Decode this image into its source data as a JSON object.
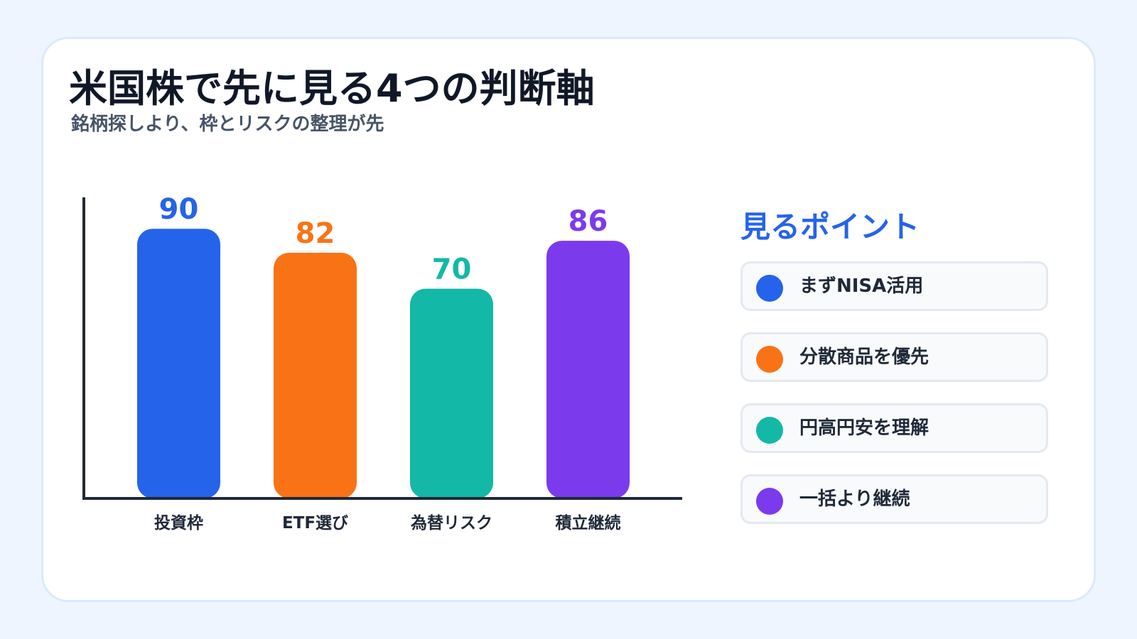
{
  "title": "米国株で先に見る4つの判断軸",
  "subtitle": "銘柄探しより、枠とリスクの整理が先",
  "chart_data": {
    "type": "bar",
    "categories": [
      "投資枠",
      "ETF選び",
      "為替リスク",
      "積立継続"
    ],
    "values": [
      90,
      82,
      70,
      86
    ],
    "colors": [
      "#2563eb",
      "#f97316",
      "#14b8a6",
      "#7c3aed"
    ],
    "ylim": [
      0,
      100
    ],
    "grid": false,
    "title": "",
    "xlabel": "",
    "ylabel": ""
  },
  "points": {
    "title": "見るポイント",
    "items": [
      {
        "label": "まずNISA活用",
        "color": "#2563eb"
      },
      {
        "label": "分散商品を優先",
        "color": "#f97316"
      },
      {
        "label": "円高円安を理解",
        "color": "#14b8a6"
      },
      {
        "label": "一括より継続",
        "color": "#7c3aed"
      }
    ]
  }
}
